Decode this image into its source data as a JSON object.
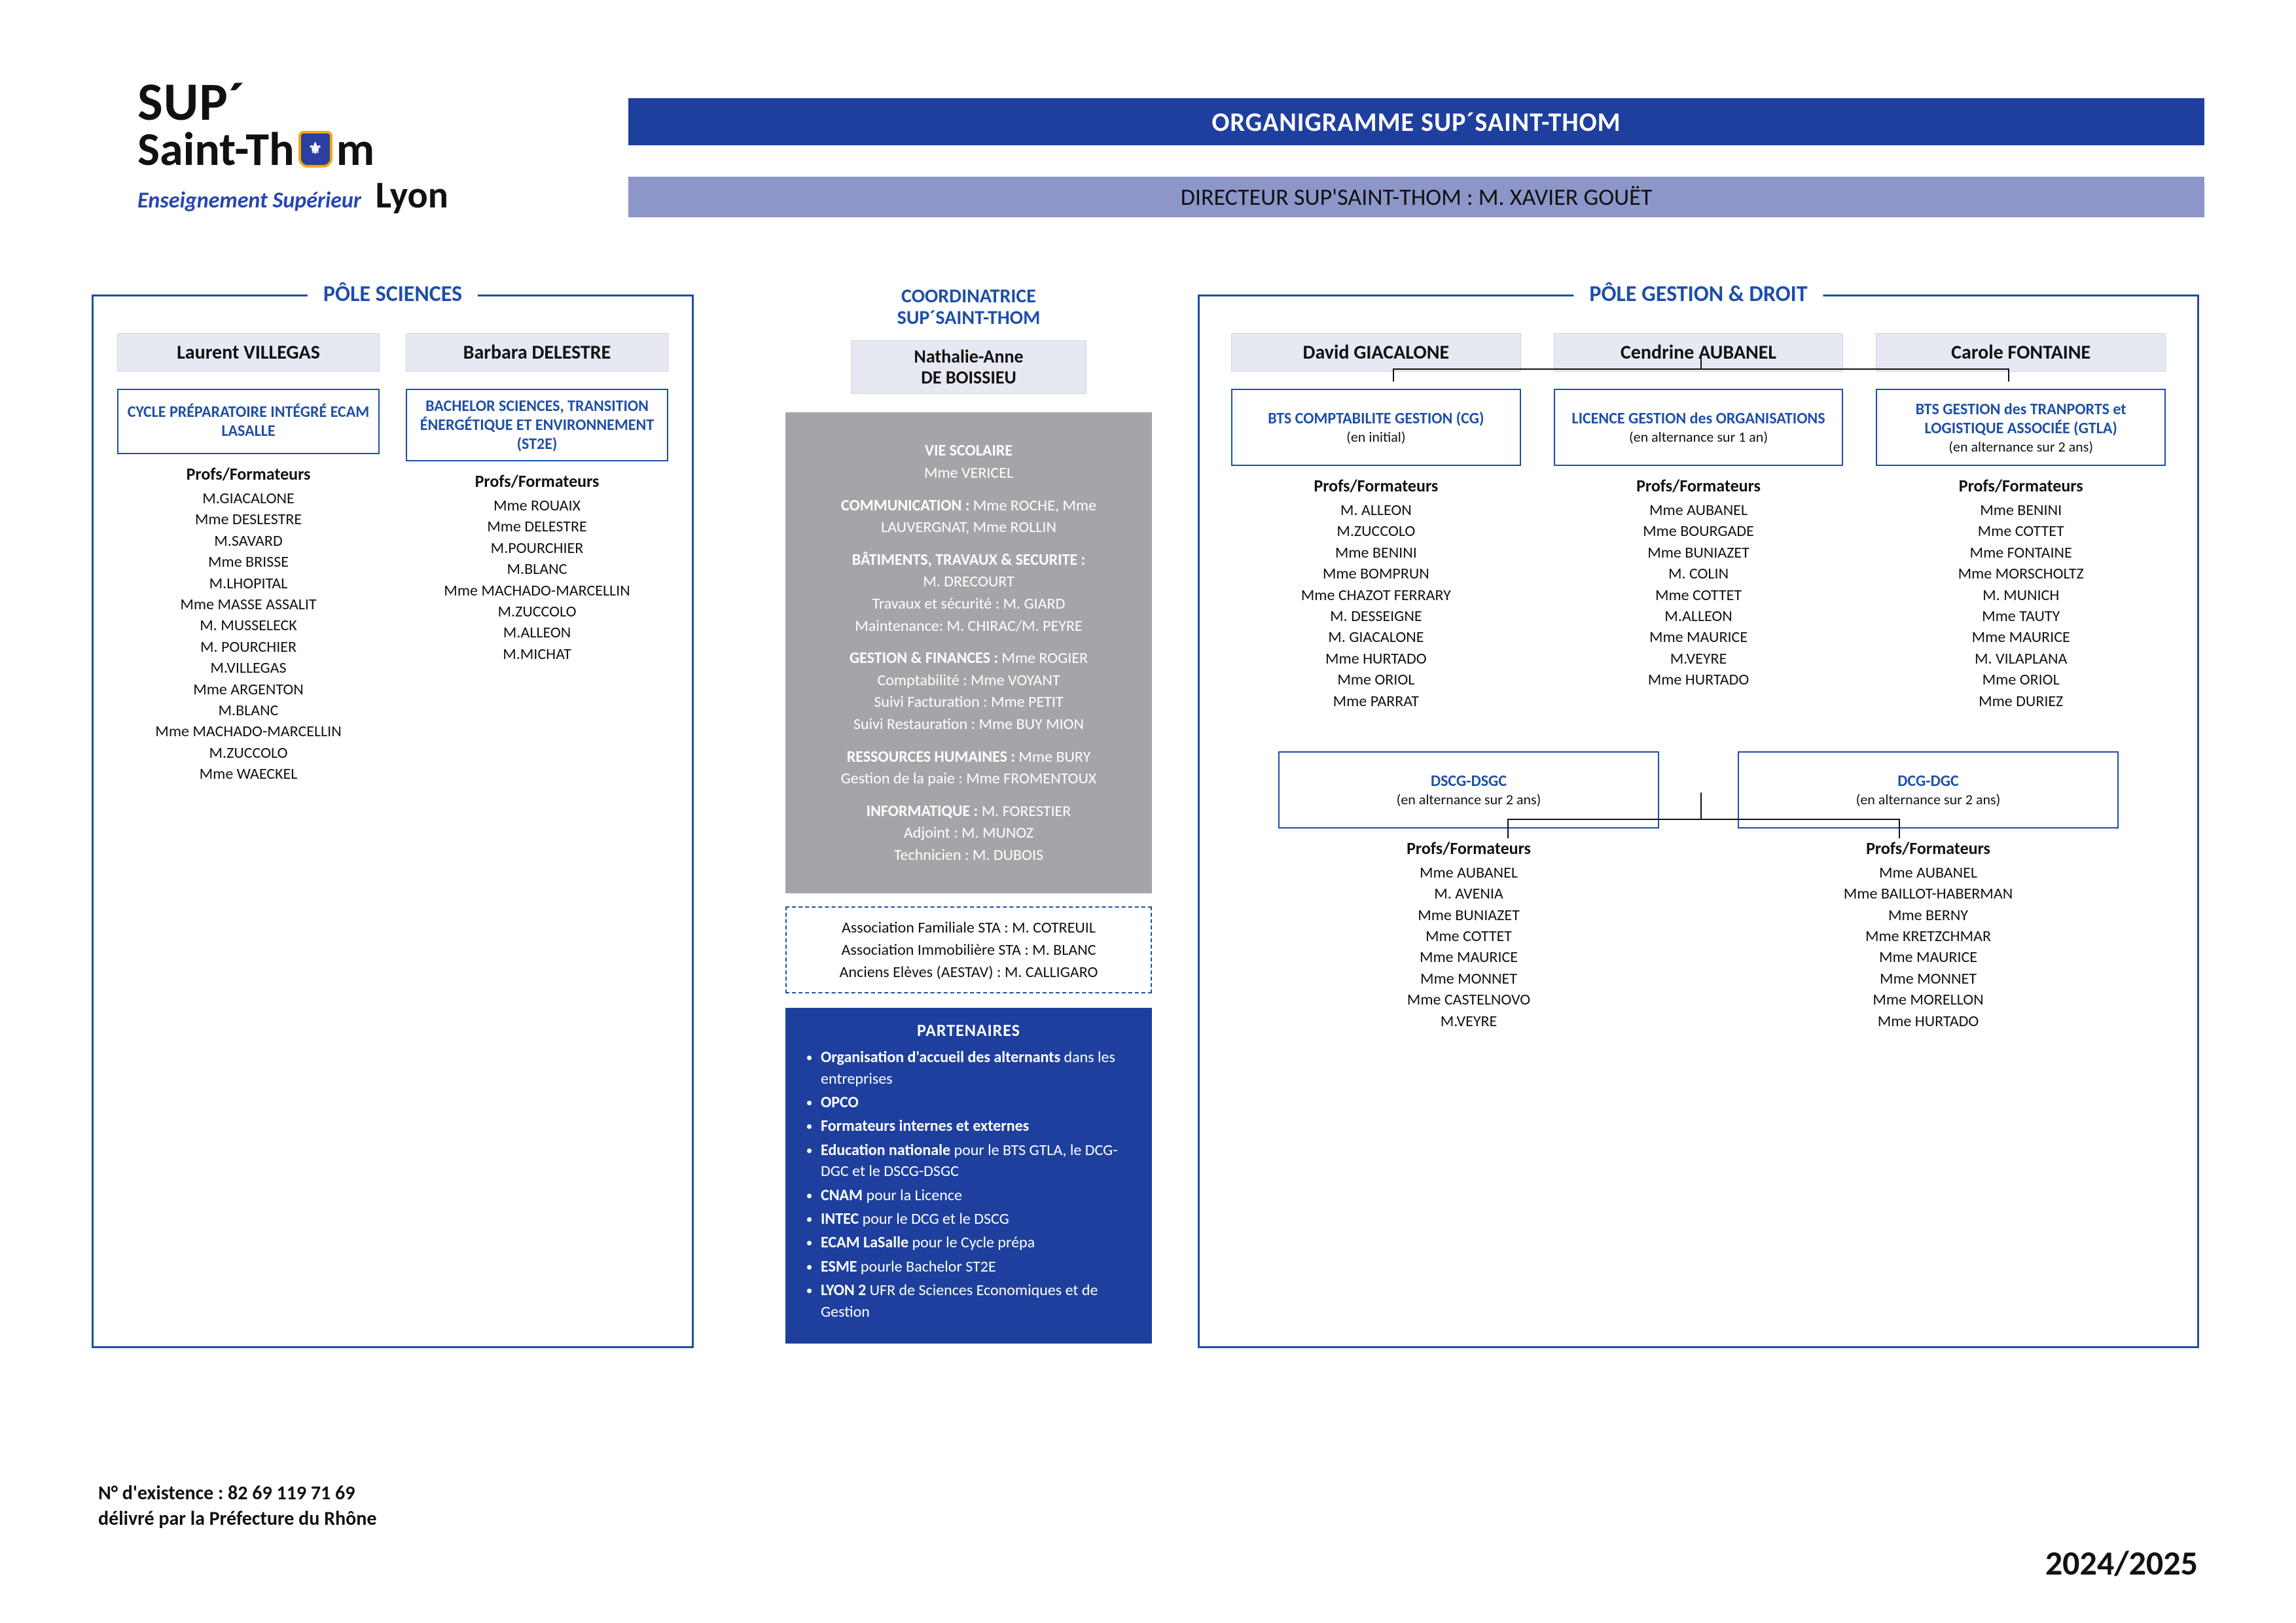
{
  "colors": {
    "blue_dark": "#1f3f9a",
    "blue_light": "#8c96c8",
    "blue_pale": "#e6e9f2",
    "grey_card": "#a3a5a8",
    "white": "#ffffff",
    "text": "#111111"
  },
  "logo": {
    "line1": "SUP´",
    "line2_pre": "Saint-Th",
    "line2_post": "m",
    "tagline": "Enseignement Supérieur",
    "city": "Lyon"
  },
  "banner": {
    "title": "ORGANIGRAMME SUP´SAINT-THOM",
    "subtitle": "DIRECTEUR SUP'SAINT-THOM : M. XAVIER GOUËT"
  },
  "sciences": {
    "pane_title": "PÔLE SCIENCES",
    "cols": [
      {
        "head": "Laurent VILLEGAS",
        "program": "CYCLE PRÉPARATOIRE INTÉGRÉ ECAM LASALLE",
        "profs_title": "Profs/Formateurs",
        "profs": [
          "M.GIACALONE",
          "Mme DESLESTRE",
          "M.SAVARD",
          "Mme BRISSE",
          "M.LHOPITAL",
          "Mme MASSE ASSALIT",
          "M. MUSSELECK",
          "M. POURCHIER",
          "M.VILLEGAS",
          "Mme ARGENTON",
          "M.BLANC",
          "Mme MACHADO-MARCELLIN",
          "M.ZUCCOLO",
          "Mme WAECKEL"
        ]
      },
      {
        "head": "Barbara DELESTRE",
        "program": "BACHELOR SCIENCES, TRANSITION ÉNERGÉTIQUE ET ENVIRONNEMENT (ST2E)",
        "profs_title": "Profs/Formateurs",
        "profs": [
          "Mme ROUAIX",
          "Mme DELESTRE",
          "M.POURCHIER",
          "M.BLANC",
          "Mme MACHADO-MARCELLIN",
          "M.ZUCCOLO",
          "M.ALLEON",
          "M.MICHAT"
        ]
      }
    ]
  },
  "middle": {
    "title": "COORDINATRICE\nSUP´SAINT-THOM",
    "name": "Nathalie-Anne\nDE BOISSIEU",
    "grey": {
      "vie": {
        "t": "VIE SCOLAIRE",
        "v": "Mme VERICEL"
      },
      "comm": {
        "t": "COMMUNICATION :",
        "v": "Mme ROCHE, Mme LAUVERGNAT, Mme ROLLIN"
      },
      "bat": {
        "t": "BÂTIMENTS,  TRAVAUX & SECURITE :",
        "v1": "M. DRECOURT",
        "v2": "Travaux et sécurité : M. GIARD",
        "v3": "Maintenance:  M. CHIRAC/M. PEYRE"
      },
      "fin": {
        "t": "GESTION & FINANCES :",
        "v0": "Mme ROGIER",
        "v1": "Comptabilité : Mme VOYANT",
        "v2": "Suivi Facturation : Mme PETIT",
        "v3": "Suivi Restauration : Mme BUY MION"
      },
      "rh": {
        "t": "RESSOURCES HUMAINES :",
        "v0": "Mme BURY",
        "v1": "Gestion de la paie : Mme FROMENTOUX"
      },
      "it": {
        "t": "INFORMATIQUE :",
        "v0": "M. FORESTIER",
        "v1": "Adjoint : M. MUNOZ",
        "v2": "Technicien : M. DUBOIS"
      }
    },
    "dashed": [
      "Association Familiale STA : M. COTREUIL",
      "Association Immobilière STA : M. BLANC",
      "Anciens Elèves (AESTAV) : M. CALLIGARO"
    ],
    "partners": {
      "title": "PARTENAIRES",
      "items": [
        {
          "b": "Organisation d'accueil des alternants",
          "r": " dans les  entreprises"
        },
        {
          "b": "OPCO",
          "r": ""
        },
        {
          "b": "Formateurs internes et externes",
          "r": ""
        },
        {
          "b": "Education nationale",
          "r": " pour le BTS GTLA, le DCG-DGC et le DSCG-DSGC"
        },
        {
          "b": "CNAM",
          "r": " pour la Licence"
        },
        {
          "b": "INTEC",
          "r": " pour le DCG et le DSCG"
        },
        {
          "b": "ECAM LaSalle",
          "r": " pour le Cycle prépa"
        },
        {
          "b": "ESME",
          "r": " pourle Bachelor ST2E"
        },
        {
          "b": "LYON 2",
          "r": " UFR de Sciences Economiques et de Gestion"
        }
      ]
    }
  },
  "gestion": {
    "pane_title": "PÔLE GESTION & DROIT",
    "top": [
      {
        "head": "David GIACALONE",
        "program": "BTS COMPTABILITE GESTION (CG)",
        "sub": "(en initial)",
        "profs_title": "Profs/Formateurs",
        "profs": [
          "M. ALLEON",
          "M.ZUCCOLO",
          "Mme BENINI",
          "Mme BOMPRUN",
          "Mme CHAZOT FERRARY",
          "M. DESSEIGNE",
          "M. GIACALONE",
          "Mme HURTADO",
          "Mme ORIOL",
          "Mme PARRAT"
        ]
      },
      {
        "head": "Cendrine AUBANEL",
        "program": "LICENCE GESTION des ORGANISATIONS",
        "sub": "(en alternance sur 1 an)",
        "profs_title": "Profs/Formateurs",
        "profs": [
          "Mme AUBANEL",
          "Mme BOURGADE",
          "Mme BUNIAZET",
          "M. COLIN",
          "Mme COTTET",
          "M.ALLEON",
          "Mme MAURICE",
          "M.VEYRE",
          "Mme HURTADO"
        ]
      },
      {
        "head": "Carole FONTAINE",
        "program": "BTS GESTION des TRANPORTS et LOGISTIQUE ASSOCIÉE (GTLA)",
        "sub": "(en alternance sur 2 ans)",
        "profs_title": "Profs/Formateurs",
        "profs": [
          "Mme BENINI",
          "Mme COTTET",
          "Mme FONTAINE",
          "Mme MORSCHOLTZ",
          "M. MUNICH",
          "Mme TAUTY",
          "Mme MAURICE",
          "M. VILAPLANA",
          "Mme ORIOL",
          "Mme DURIEZ"
        ]
      }
    ],
    "bottom": [
      {
        "program": "DSCG-DSGC",
        "sub": "(en alternance sur 2 ans)",
        "profs_title": "Profs/Formateurs",
        "profs": [
          "Mme AUBANEL",
          "M. AVENIA",
          "Mme BUNIAZET",
          "Mme COTTET",
          "Mme MAURICE",
          "Mme MONNET",
          "Mme CASTELNOVO",
          "M.VEYRE"
        ]
      },
      {
        "program": "DCG-DGC",
        "sub": "(en alternance sur 2 ans)",
        "profs_title": "Profs/Formateurs",
        "profs": [
          "Mme AUBANEL",
          "Mme BAILLOT-HABERMAN",
          "Mme BERNY",
          "Mme KRETZCHMAR",
          "Mme MAURICE",
          "Mme MONNET",
          "Mme MORELLON",
          "Mme HURTADO"
        ]
      }
    ]
  },
  "footer": {
    "existence": "N° d'existence : 82 69 119 71 69",
    "delivre": "délivré par la Préfecture du Rhône",
    "year": "2024/2025"
  }
}
